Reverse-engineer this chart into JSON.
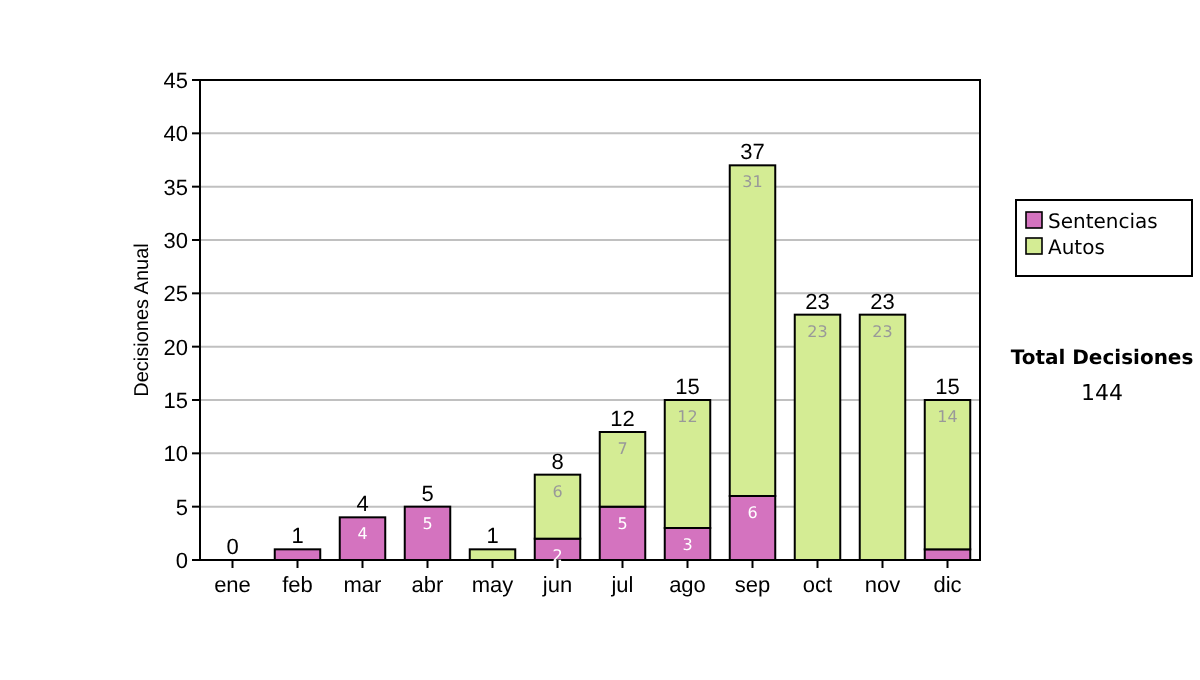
{
  "chart_data": {
    "type": "bar",
    "stacked": true,
    "ylabel": "Decisiones Anual",
    "categories": [
      "ene",
      "feb",
      "mar",
      "abr",
      "may",
      "jun",
      "jul",
      "ago",
      "sep",
      "oct",
      "nov",
      "dic"
    ],
    "series": [
      {
        "name": "Sentencias",
        "color": "#d473bf",
        "values": [
          0,
          1,
          4,
          5,
          0,
          2,
          5,
          3,
          6,
          0,
          0,
          1
        ],
        "value_labels": [
          null,
          null,
          "4",
          "5",
          null,
          "2",
          "5",
          "3",
          "6",
          null,
          null,
          null
        ]
      },
      {
        "name": "Autos",
        "color": "#d4ec94",
        "values": [
          0,
          0,
          0,
          0,
          1,
          6,
          7,
          12,
          31,
          23,
          23,
          14
        ],
        "value_labels": [
          null,
          null,
          null,
          null,
          null,
          "6",
          "7",
          "12",
          "31",
          "23",
          "23",
          "14"
        ]
      }
    ],
    "totals": [
      "0",
      "1",
      "4",
      "5",
      "1",
      "8",
      "12",
      "15",
      "37",
      "23",
      "23",
      "15"
    ],
    "ylim": [
      0,
      45
    ],
    "yticks": [
      0,
      5,
      10,
      15,
      20,
      25,
      30,
      35,
      40,
      45
    ],
    "grid": "y",
    "legend": "right",
    "annotations": [
      "Total Decisiones",
      "144"
    ]
  }
}
